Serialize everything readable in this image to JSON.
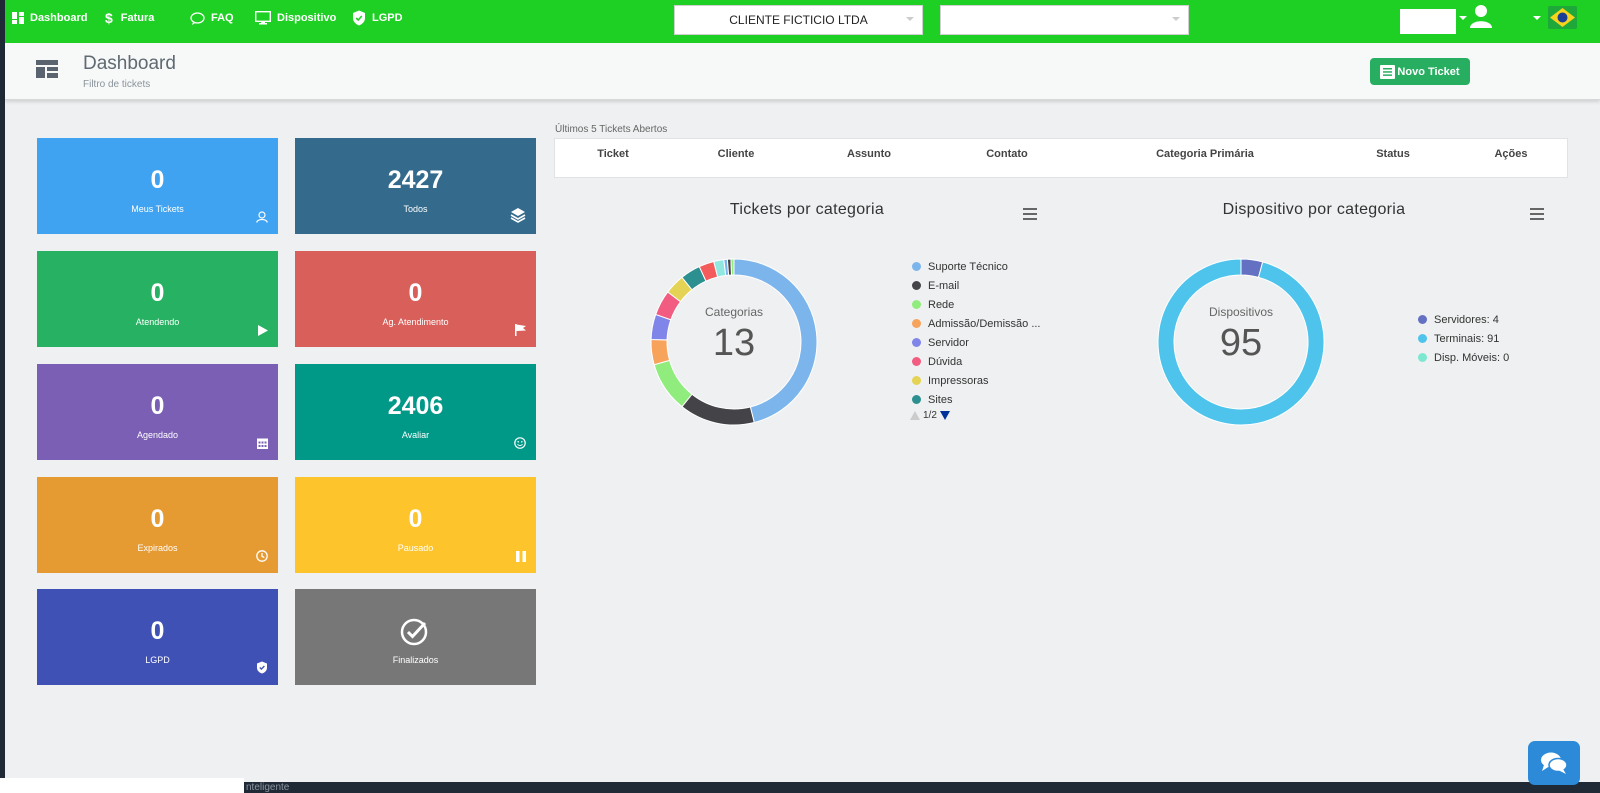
{
  "nav": {
    "items": [
      {
        "label": "Dashboard",
        "icon": "dashboard-icon"
      },
      {
        "label": "Fatura",
        "icon": "dollar-icon"
      },
      {
        "label": "FAQ",
        "icon": "chat-bubble-icon"
      },
      {
        "label": "Dispositivo",
        "icon": "monitor-icon"
      },
      {
        "label": "LGPD",
        "icon": "shield-icon"
      }
    ],
    "client_select": "CLIENTE FICTICIO LTDA",
    "second_select": ""
  },
  "header": {
    "title": "Dashboard",
    "subtitle": "Filtro de tickets",
    "new_ticket": "Novo Ticket"
  },
  "tiles": [
    {
      "value": "0",
      "label": "Meus Tickets",
      "color": "#3fa3f1",
      "icon": "user-icon"
    },
    {
      "value": "2427",
      "label": "Todos",
      "color": "#346b8c",
      "icon": "layers-icon"
    },
    {
      "value": "0",
      "label": "Atendendo",
      "color": "#26b262",
      "icon": "play-icon"
    },
    {
      "value": "0",
      "label": "Ag. Atendimento",
      "color": "#d9605a",
      "icon": "flag-icon"
    },
    {
      "value": "0",
      "label": "Agendado",
      "color": "#7a5fb5",
      "icon": "calendar-icon"
    },
    {
      "value": "2406",
      "label": "Avaliar",
      "color": "#009886",
      "icon": "smile-icon"
    },
    {
      "value": "0",
      "label": "Expirados",
      "color": "#e69a32",
      "icon": "clock-icon"
    },
    {
      "value": "0",
      "label": "Pausado",
      "color": "#fdc42b",
      "icon": "pause-icon"
    },
    {
      "value": "0",
      "label": "LGPD",
      "color": "#3f51b5",
      "icon": "shield-icon"
    },
    {
      "value": "",
      "label": "Finalizados",
      "color": "#777777",
      "icon": "check-circle-icon"
    }
  ],
  "table": {
    "caption": "Últimos 5 Tickets Abertos",
    "columns": [
      "Ticket",
      "Cliente",
      "Assunto",
      "Contato",
      "Categoria Primária",
      "Status",
      "Ações"
    ]
  },
  "chart_data": [
    {
      "type": "pie",
      "title": "Tickets por categoria",
      "center_label": "Categorias",
      "center_value": "13",
      "series": [
        {
          "name": "Suporte Técnico",
          "value": 47,
          "color": "#7cb5ec"
        },
        {
          "name": "E-mail",
          "value": 15,
          "color": "#434348"
        },
        {
          "name": "Rede",
          "value": 10,
          "color": "#90ed7d"
        },
        {
          "name": "Admissão/Demissão ...",
          "value": 5,
          "color": "#f7a35c"
        },
        {
          "name": "Servidor",
          "value": 5,
          "color": "#8085e9"
        },
        {
          "name": "Dúvida",
          "value": 5,
          "color": "#f15c80"
        },
        {
          "name": "Impressoras",
          "value": 4,
          "color": "#e4d354"
        },
        {
          "name": "Sites",
          "value": 4,
          "color": "#2b908f"
        },
        {
          "name": "",
          "value": 3,
          "color": "#f45b5b"
        },
        {
          "name": "",
          "value": 2,
          "color": "#91e8e1"
        },
        {
          "name": "",
          "value": 0.7,
          "color": "#7cb5ec"
        },
        {
          "name": "",
          "value": 0.7,
          "color": "#434348"
        },
        {
          "name": "",
          "value": 0.6,
          "color": "#90ed7d"
        }
      ],
      "legend_page": "1/2"
    },
    {
      "type": "pie",
      "title": "Dispositivo por categoria",
      "center_label": "Dispositivos",
      "center_value": "95",
      "series": [
        {
          "name": "Servidores: 4",
          "value": 4,
          "color": "#6470c2"
        },
        {
          "name": "Terminais: 91",
          "value": 91,
          "color": "#4ec4ec"
        },
        {
          "name": "Disp. Móveis: 0",
          "value": 0,
          "color": "#7de8d0"
        }
      ]
    }
  ],
  "footer": {
    "text": "nteligente"
  }
}
